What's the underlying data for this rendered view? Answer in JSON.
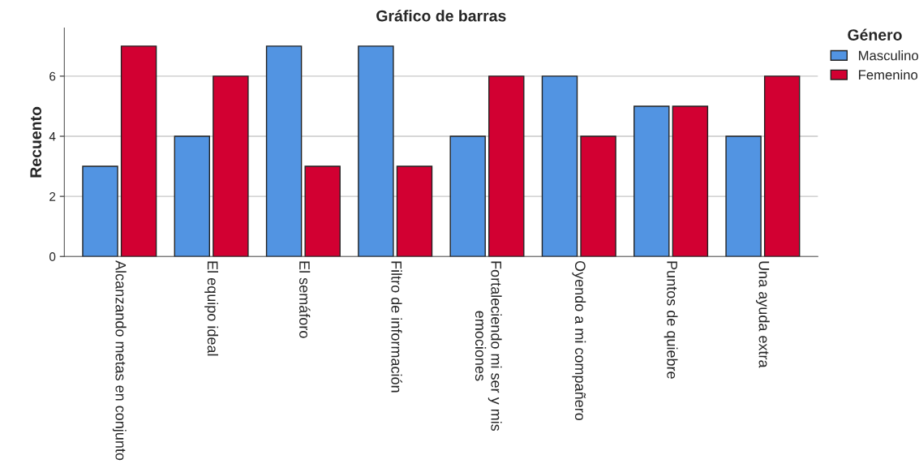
{
  "chart_data": {
    "type": "bar",
    "title": "Gráfico de barras",
    "ylabel": "Recuento",
    "legend_title": "Género",
    "categories": [
      "Alcanzando metas en conjunto",
      "El equipo ideal",
      "El semáforo",
      "Filtro de información",
      "Fortaleciendo mi ser y mis\nemociones",
      "Oyendo a mi compañero",
      "Puntos de quiebre",
      "Una ayuda extra"
    ],
    "series": [
      {
        "name": "Masculino",
        "color": "#5294e2",
        "values": [
          3,
          4,
          7,
          7,
          4,
          6,
          5,
          4
        ]
      },
      {
        "name": "Femenino",
        "color": "#d20032",
        "values": [
          7,
          6,
          3,
          3,
          6,
          4,
          5,
          6
        ]
      }
    ],
    "ylim": [
      0,
      7.6
    ],
    "yticks": [
      0,
      2,
      4,
      6
    ],
    "grid": "y",
    "legend": "top right"
  }
}
